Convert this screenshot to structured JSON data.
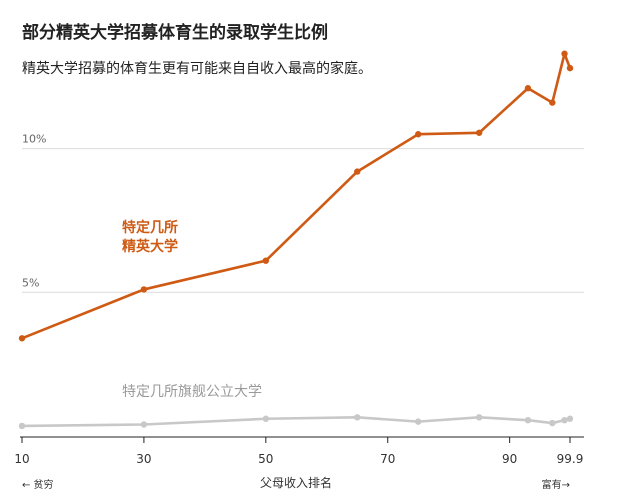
{
  "title": "部分精英大学招募体育生的录取学生比例",
  "subtitle": "精英大学招募的体育生更有可能来自自收入最高的家庭。",
  "colors": {
    "elite": "#cf5a14",
    "public": "#c8c8c8",
    "grid": "#dcdcdc",
    "axis": "#222222"
  },
  "chart_data": {
    "type": "line",
    "xlabel": "父母收入排名",
    "x_left_note": "← 贫穷",
    "x_right_note": "富有→",
    "x_ticks": [
      10,
      30,
      50,
      70,
      90,
      99.9
    ],
    "x_tick_labels": [
      "10",
      "30",
      "50",
      "70",
      "90",
      "99.9"
    ],
    "xlim": [
      10,
      99.9
    ],
    "ylim": [
      0,
      13.5
    ],
    "gridlines": [
      {
        "value": 10,
        "label": "10%"
      },
      {
        "value": 5,
        "label": "5%"
      }
    ],
    "series": [
      {
        "name": "特定几所精英大学",
        "name_lines": [
          "特定几所",
          "精英大学"
        ],
        "color": "#cf5a14",
        "x": [
          10,
          30,
          50,
          65,
          75,
          85,
          93,
          97,
          99,
          99.9
        ],
        "y": [
          3.4,
          5.1,
          6.1,
          9.2,
          10.5,
          10.55,
          12.1,
          11.6,
          13.3,
          12.8
        ]
      },
      {
        "name": "特定几所旗舰公立大学",
        "color": "#c8c8c8",
        "x": [
          10,
          30,
          50,
          65,
          75,
          85,
          93,
          97,
          99,
          99.9
        ],
        "y": [
          0.35,
          0.4,
          0.6,
          0.65,
          0.5,
          0.65,
          0.55,
          0.45,
          0.55,
          0.6
        ]
      }
    ]
  }
}
